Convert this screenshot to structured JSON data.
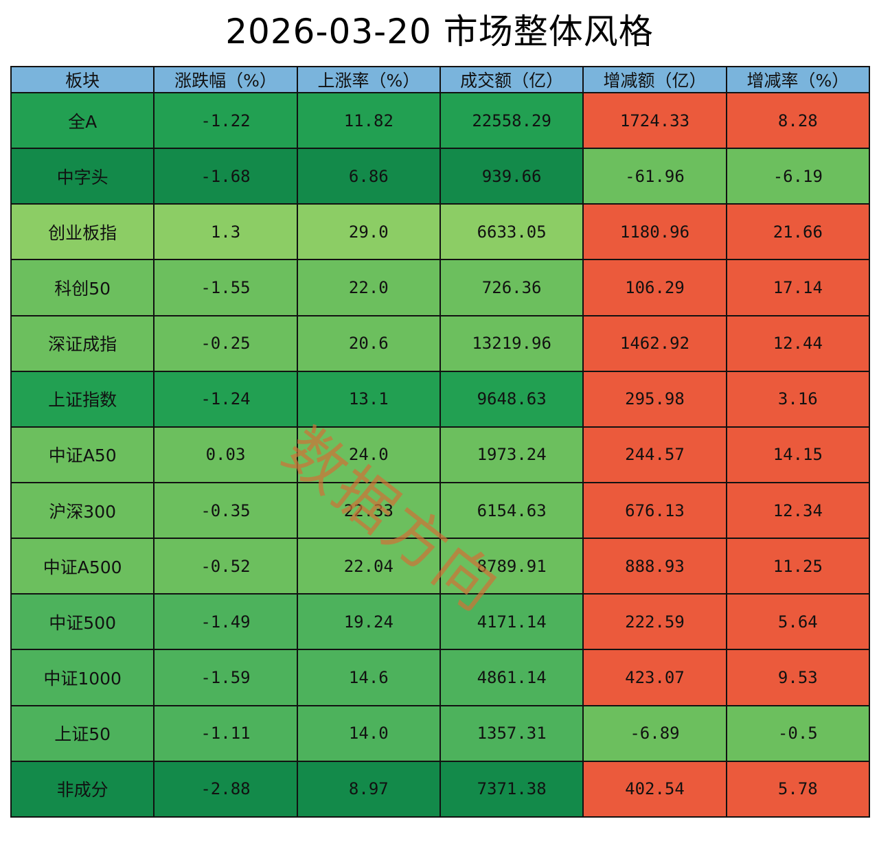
{
  "title": "2026-03-20 市场整体风格",
  "watermark": "数据方向",
  "colors": {
    "header": "#7ab4dc",
    "dark_green": "#138a4a",
    "mid_green": "#22a052",
    "green": "#4db25c",
    "light_green": "#6cbf5e",
    "pale_green": "#8ccd65",
    "red": "#eb5a3c"
  },
  "chart_data": {
    "type": "table",
    "title": "2026-03-20 市场整体风格",
    "columns": [
      "板块",
      "涨跌幅（%）",
      "上涨率（%）",
      "成交额（亿）",
      "增减额（亿）",
      "增减率（%）"
    ],
    "rows": [
      {
        "name": "全A",
        "change_pct": "-1.22",
        "up_rate": "11.82",
        "turnover": "22558.29",
        "turnover_change": "1724.33",
        "turnover_change_pct": "8.28",
        "left_tone": "mid_green",
        "right_tone": "red"
      },
      {
        "name": "中字头",
        "change_pct": "-1.68",
        "up_rate": "6.86",
        "turnover": "939.66",
        "turnover_change": "-61.96",
        "turnover_change_pct": "-6.19",
        "left_tone": "dark_green",
        "right_tone": "light_green"
      },
      {
        "name": "创业板指",
        "change_pct": "1.3",
        "up_rate": "29.0",
        "turnover": "6633.05",
        "turnover_change": "1180.96",
        "turnover_change_pct": "21.66",
        "left_tone": "pale_green",
        "right_tone": "red"
      },
      {
        "name": "科创50",
        "change_pct": "-1.55",
        "up_rate": "22.0",
        "turnover": "726.36",
        "turnover_change": "106.29",
        "turnover_change_pct": "17.14",
        "left_tone": "light_green",
        "right_tone": "red"
      },
      {
        "name": "深证成指",
        "change_pct": "-0.25",
        "up_rate": "20.6",
        "turnover": "13219.96",
        "turnover_change": "1462.92",
        "turnover_change_pct": "12.44",
        "left_tone": "light_green",
        "right_tone": "red"
      },
      {
        "name": "上证指数",
        "change_pct": "-1.24",
        "up_rate": "13.1",
        "turnover": "9648.63",
        "turnover_change": "295.98",
        "turnover_change_pct": "3.16",
        "left_tone": "mid_green",
        "right_tone": "red"
      },
      {
        "name": "中证A50",
        "change_pct": "0.03",
        "up_rate": "24.0",
        "turnover": "1973.24",
        "turnover_change": "244.57",
        "turnover_change_pct": "14.15",
        "left_tone": "light_green",
        "right_tone": "red"
      },
      {
        "name": "沪深300",
        "change_pct": "-0.35",
        "up_rate": "22.33",
        "turnover": "6154.63",
        "turnover_change": "676.13",
        "turnover_change_pct": "12.34",
        "left_tone": "light_green",
        "right_tone": "red"
      },
      {
        "name": "中证A500",
        "change_pct": "-0.52",
        "up_rate": "22.04",
        "turnover": "8789.91",
        "turnover_change": "888.93",
        "turnover_change_pct": "11.25",
        "left_tone": "light_green",
        "right_tone": "red"
      },
      {
        "name": "中证500",
        "change_pct": "-1.49",
        "up_rate": "19.24",
        "turnover": "4171.14",
        "turnover_change": "222.59",
        "turnover_change_pct": "5.64",
        "left_tone": "green",
        "right_tone": "red"
      },
      {
        "name": "中证1000",
        "change_pct": "-1.59",
        "up_rate": "14.6",
        "turnover": "4861.14",
        "turnover_change": "423.07",
        "turnover_change_pct": "9.53",
        "left_tone": "green",
        "right_tone": "red"
      },
      {
        "name": "上证50",
        "change_pct": "-1.11",
        "up_rate": "14.0",
        "turnover": "1357.31",
        "turnover_change": "-6.89",
        "turnover_change_pct": "-0.5",
        "left_tone": "green",
        "right_tone": "light_green"
      },
      {
        "name": "非成分",
        "change_pct": "-2.88",
        "up_rate": "8.97",
        "turnover": "7371.38",
        "turnover_change": "402.54",
        "turnover_change_pct": "5.78",
        "left_tone": "dark_green",
        "right_tone": "red"
      }
    ]
  }
}
